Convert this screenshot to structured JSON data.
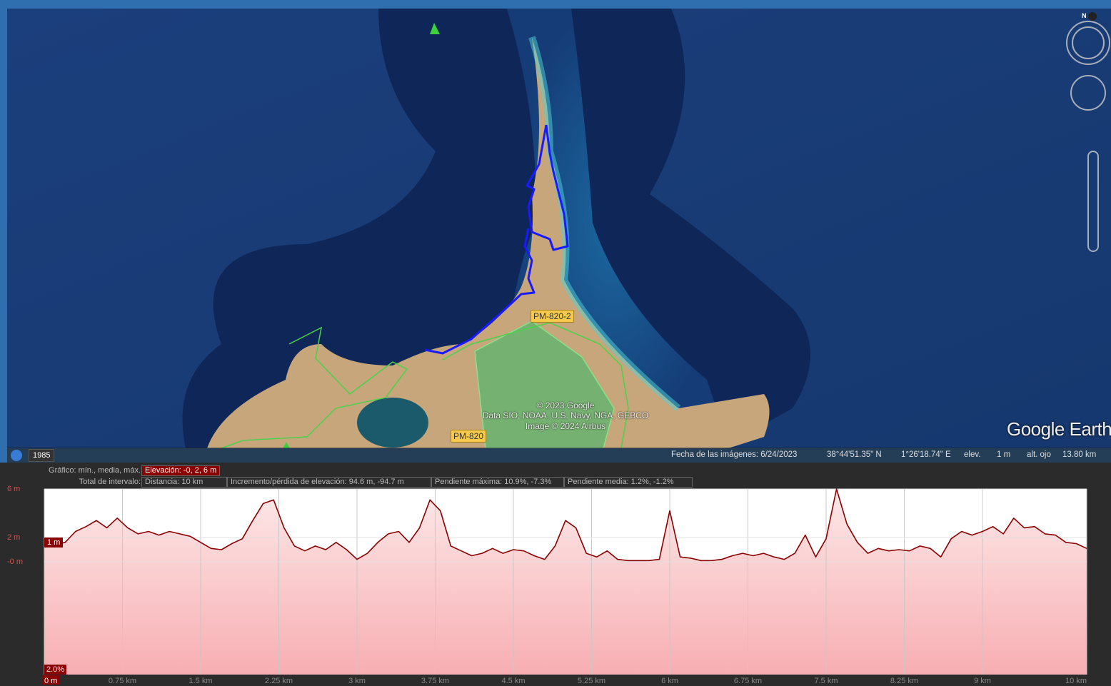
{
  "map": {
    "year_badge": "1985",
    "compass_north": "N",
    "brand": "Google Earth",
    "road_labels": [
      "PM-820-2",
      "PM-820"
    ],
    "attribution": [
      "© 2023 Google",
      "Data SIO, NOAA, U.S. Navy, NGA, GEBCO",
      "Image © 2024 Airbus"
    ]
  },
  "status_bar": {
    "imagery_date": "Fecha de las imágenes: 6/24/2023",
    "latitude": "38°44'51.35\" N",
    "longitude": "1°26'18.74\" E",
    "elev_label": "elev.",
    "elev_value": "1 m",
    "eye_label": "alt. ojo",
    "eye_value": "13.80 km"
  },
  "profile_info": {
    "graph_label": "Gráfico: mín., media, máx.",
    "elevation": "Elevación: -0, 2, 6 m",
    "range_label": "Total de intervalo:",
    "distance": "Distancia: 10 km",
    "gain_loss": "Incremento/pérdida de elevación: 94.6 m, -94.7 m",
    "max_slope": "Pendiente máxima: 10.9%, -7.3%",
    "avg_slope": "Pendiente media: 1.2%, -1.2%",
    "cursor_elevation": "1 m",
    "cursor_slope": "2.0%"
  },
  "chart_data": {
    "type": "area",
    "color": "#8b0000",
    "grid": true,
    "xlim": [
      0,
      10
    ],
    "ylim": [
      -9.3,
      6
    ],
    "xticks": [
      {
        "value": 0,
        "label": "0 m"
      },
      {
        "value": 0.75,
        "label": "0.75 km"
      },
      {
        "value": 1.5,
        "label": "1.5 km"
      },
      {
        "value": 2.25,
        "label": "2.25 km"
      },
      {
        "value": 3,
        "label": "3 km"
      },
      {
        "value": 3.75,
        "label": "3.75 km"
      },
      {
        "value": 4.5,
        "label": "4.5 km"
      },
      {
        "value": 5.25,
        "label": "5.25 km"
      },
      {
        "value": 6,
        "label": "6 km"
      },
      {
        "value": 6.75,
        "label": "6.75 km"
      },
      {
        "value": 7.5,
        "label": "7.5 km"
      },
      {
        "value": 8.25,
        "label": "8.25 km"
      },
      {
        "value": 9,
        "label": "9 km"
      },
      {
        "value": 10,
        "label": "10 km"
      }
    ],
    "yticks": [
      {
        "value": 6,
        "label": "6 m"
      },
      {
        "value": 2,
        "label": "2 m"
      },
      {
        "value": 0,
        "label": "-0 m"
      }
    ],
    "x": [
      0,
      0.1,
      0.2,
      0.3,
      0.4,
      0.5,
      0.6,
      0.7,
      0.8,
      0.9,
      1,
      1.1,
      1.2,
      1.3,
      1.4,
      1.5,
      1.6,
      1.7,
      1.8,
      1.9,
      2,
      2.1,
      2.2,
      2.3,
      2.4,
      2.5,
      2.6,
      2.7,
      2.8,
      2.9,
      3,
      3.1,
      3.2,
      3.3,
      3.4,
      3.5,
      3.6,
      3.7,
      3.8,
      3.9,
      4,
      4.1,
      4.2,
      4.3,
      4.4,
      4.5,
      4.6,
      4.7,
      4.8,
      4.9,
      5,
      5.1,
      5.2,
      5.3,
      5.4,
      5.5,
      5.6,
      5.7,
      5.8,
      5.9,
      6,
      6.1,
      6.2,
      6.3,
      6.4,
      6.5,
      6.6,
      6.7,
      6.8,
      6.9,
      7,
      7.1,
      7.2,
      7.3,
      7.4,
      7.5,
      7.6,
      7.7,
      7.8,
      7.9,
      8,
      8.1,
      8.2,
      8.3,
      8.4,
      8.5,
      8.6,
      8.7,
      8.8,
      8.9,
      9,
      9.1,
      9.2,
      9.3,
      9.4,
      9.5,
      9.6,
      9.7,
      9.8,
      9.9,
      10
    ],
    "values": [
      1.3,
      1.4,
      1.6,
      2.5,
      2.9,
      3.4,
      2.8,
      3.6,
      2.8,
      2.3,
      2.5,
      2.2,
      2.5,
      2.3,
      2.1,
      1.6,
      1.1,
      1.0,
      1.5,
      1.9,
      3.4,
      4.8,
      5.1,
      2.8,
      1.3,
      0.9,
      1.3,
      1.0,
      1.6,
      1.0,
      0.2,
      0.7,
      1.6,
      2.3,
      2.5,
      1.6,
      2.8,
      5.1,
      4.2,
      1.3,
      0.9,
      0.5,
      0.7,
      1.1,
      0.7,
      1.0,
      0.9,
      0.5,
      0.2,
      1.3,
      3.4,
      2.8,
      0.7,
      0.4,
      0.9,
      0.2,
      0.1,
      0.1,
      0.1,
      0.2,
      4.2,
      0.4,
      0.3,
      0.1,
      0.1,
      0.2,
      0.5,
      0.7,
      0.5,
      0.7,
      0.4,
      0.2,
      0.7,
      2.2,
      0.4,
      1.9,
      6.0,
      3.1,
      1.6,
      0.7,
      1.1,
      0.9,
      1.0,
      0.9,
      1.3,
      1.1,
      0.4,
      1.9,
      2.5,
      2.2,
      2.5,
      2.9,
      2.3,
      3.6,
      2.8,
      2.9,
      2.3,
      2.2,
      1.6,
      1.5,
      1.1
    ]
  }
}
